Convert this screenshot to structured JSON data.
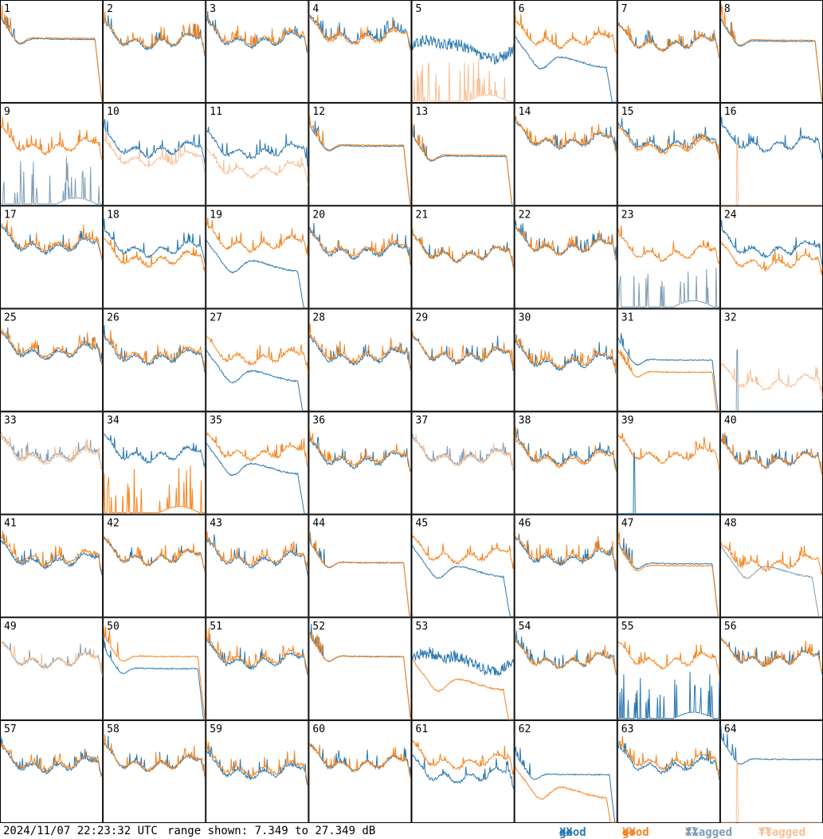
{
  "timestamp": "2024/11/07 22:23:32 UTC",
  "range_text": "range shown: 7.349 to 27.349 dB",
  "legend": [
    {
      "key": "good_xx",
      "prefix": "good",
      "pol": "XX",
      "color": "#2a78b0"
    },
    {
      "key": "good_yy",
      "prefix": "good",
      "pol": "YY",
      "color": "#f5841f"
    },
    {
      "key": "flagged_xx",
      "prefix": "flagged",
      "pol": "XX",
      "color": "#7f9db5"
    },
    {
      "key": "flagged_yy",
      "prefix": "flagged",
      "pol": "YY",
      "color": "#f7c096"
    }
  ],
  "chart_data": {
    "type": "line",
    "layout": "8x8 small multiples, one panel per tile",
    "ylim_db": [
      7.349,
      27.349
    ],
    "series_names": [
      "good XX",
      "good YY",
      "flagged XX",
      "flagged YY"
    ],
    "panels": [
      {
        "id": 1,
        "xx": "good",
        "yy": "good",
        "xx_shape": "flat",
        "yy_shape": "flat",
        "xx_level": 0.62,
        "yy_level": 0.63,
        "edge_drop": true
      },
      {
        "id": 2,
        "xx": "good",
        "yy": "good",
        "xx_shape": "typical",
        "yy_shape": "typical",
        "xx_level": 0.62,
        "yy_level": 0.63
      },
      {
        "id": 3,
        "xx": "good",
        "yy": "good",
        "xx_shape": "typical",
        "yy_shape": "typical",
        "xx_level": 0.63,
        "yy_level": 0.65
      },
      {
        "id": 4,
        "xx": "good",
        "yy": "good",
        "xx_shape": "typical",
        "yy_shape": "typical",
        "xx_level": 0.68,
        "yy_level": 0.66
      },
      {
        "id": 5,
        "xx": "good",
        "yy": "flagged",
        "xx_shape": "noisy",
        "yy_shape": "spiky_low",
        "xx_level": 0.55,
        "yy_level": 0.05
      },
      {
        "id": 6,
        "xx": "good",
        "yy": "good",
        "xx_shape": "dip",
        "yy_shape": "typical",
        "xx_level": 0.4,
        "yy_level": 0.63,
        "edge_drop": true
      },
      {
        "id": 7,
        "xx": "good",
        "yy": "good",
        "xx_shape": "typical",
        "yy_shape": "typical",
        "xx_level": 0.6,
        "yy_level": 0.6
      },
      {
        "id": 8,
        "xx": "good",
        "yy": "good",
        "xx_shape": "flat",
        "yy_shape": "flat",
        "xx_level": 0.6,
        "yy_level": 0.61,
        "edge_drop": true
      },
      {
        "id": 9,
        "xx": "flagged",
        "yy": "good",
        "xx_shape": "spiky_low",
        "yy_shape": "typical",
        "xx_level": 0.1,
        "yy_level": 0.6
      },
      {
        "id": 10,
        "xx": "good",
        "yy": "flagged",
        "xx_shape": "typical",
        "yy_shape": "typical",
        "xx_level": 0.57,
        "yy_level": 0.47,
        "edge_drop": true
      },
      {
        "id": 11,
        "xx": "good",
        "yy": "flagged",
        "xx_shape": "typical",
        "yy_shape": "typical",
        "xx_level": 0.55,
        "yy_level": 0.37,
        "edge_drop": true
      },
      {
        "id": 12,
        "xx": "good",
        "yy": "good",
        "xx_shape": "flat",
        "yy_shape": "flat",
        "xx_level": 0.58,
        "yy_level": 0.59,
        "edge_drop": true
      },
      {
        "id": 13,
        "xx": "good",
        "yy": "good",
        "xx_shape": "flat",
        "yy_shape": "flat",
        "xx_level": 0.48,
        "yy_level": 0.49,
        "edge_drop": true
      },
      {
        "id": 14,
        "xx": "good",
        "yy": "good",
        "xx_shape": "typical",
        "yy_shape": "typical",
        "xx_level": 0.65,
        "yy_level": 0.66
      },
      {
        "id": 15,
        "xx": "good",
        "yy": "good",
        "xx_shape": "typical",
        "yy_shape": "typical",
        "xx_level": 0.63,
        "yy_level": 0.6
      },
      {
        "id": 16,
        "xx": "good",
        "yy": "flagged",
        "xx_shape": "typical",
        "yy_shape": "spike_low",
        "xx_level": 0.62,
        "yy_level": 0.0
      },
      {
        "id": 17,
        "xx": "good",
        "yy": "good",
        "xx_shape": "typical",
        "yy_shape": "typical",
        "xx_level": 0.63,
        "yy_level": 0.65
      },
      {
        "id": 18,
        "xx": "good",
        "yy": "good",
        "xx_shape": "typical",
        "yy_shape": "typical",
        "xx_level": 0.6,
        "yy_level": 0.5
      },
      {
        "id": 19,
        "xx": "good",
        "yy": "good",
        "xx_shape": "dip",
        "yy_shape": "typical",
        "xx_level": 0.42,
        "yy_level": 0.65,
        "edge_drop": true
      },
      {
        "id": 20,
        "xx": "good",
        "yy": "good",
        "xx_shape": "typical",
        "yy_shape": "typical",
        "xx_level": 0.58,
        "yy_level": 0.6
      },
      {
        "id": 21,
        "xx": "good",
        "yy": "good",
        "xx_shape": "typical",
        "yy_shape": "typical",
        "xx_level": 0.55,
        "yy_level": 0.55
      },
      {
        "id": 22,
        "xx": "good",
        "yy": "good",
        "xx_shape": "typical",
        "yy_shape": "typical",
        "xx_level": 0.62,
        "yy_level": 0.62
      },
      {
        "id": 23,
        "xx": "flagged",
        "yy": "good",
        "xx_shape": "spiky_low",
        "yy_shape": "typical",
        "xx_level": 0.1,
        "yy_level": 0.56
      },
      {
        "id": 24,
        "xx": "good",
        "yy": "good",
        "xx_shape": "typical",
        "yy_shape": "typical",
        "xx_level": 0.6,
        "yy_level": 0.47
      },
      {
        "id": 25,
        "xx": "good",
        "yy": "good",
        "xx_shape": "typical",
        "yy_shape": "typical",
        "xx_level": 0.6,
        "yy_level": 0.62
      },
      {
        "id": 26,
        "xx": "good",
        "yy": "good",
        "xx_shape": "typical",
        "yy_shape": "typical",
        "xx_level": 0.55,
        "yy_level": 0.57
      },
      {
        "id": 27,
        "xx": "good",
        "yy": "good",
        "xx_shape": "dip",
        "yy_shape": "typical",
        "xx_level": 0.35,
        "yy_level": 0.55,
        "edge_drop": true
      },
      {
        "id": 28,
        "xx": "good",
        "yy": "good",
        "xx_shape": "typical",
        "yy_shape": "typical",
        "xx_level": 0.55,
        "yy_level": 0.57
      },
      {
        "id": 29,
        "xx": "good",
        "yy": "good",
        "xx_shape": "typical",
        "yy_shape": "typical",
        "xx_level": 0.56,
        "yy_level": 0.57
      },
      {
        "id": 30,
        "xx": "good",
        "yy": "good",
        "xx_shape": "typical",
        "yy_shape": "typical",
        "xx_level": 0.5,
        "yy_level": 0.52,
        "edge_drop": true
      },
      {
        "id": 31,
        "xx": "good",
        "yy": "good",
        "xx_shape": "flat",
        "yy_shape": "flat",
        "xx_level": 0.5,
        "yy_level": 0.38,
        "edge_drop": true
      },
      {
        "id": 32,
        "xx": "flagged",
        "yy": "flagged",
        "xx_shape": "spike_low",
        "yy_shape": "typical",
        "xx_level": 0.0,
        "yy_level": 0.3
      },
      {
        "id": 33,
        "xx": "flagged",
        "yy": "flagged",
        "xx_shape": "typical",
        "yy_shape": "typical",
        "xx_level": 0.6,
        "yy_level": 0.58
      },
      {
        "id": 34,
        "xx": "good",
        "yy": "good",
        "xx_shape": "typical",
        "yy_shape": "spiky_low",
        "xx_level": 0.6,
        "yy_level": 0.1
      },
      {
        "id": 35,
        "xx": "good",
        "yy": "good",
        "xx_shape": "dip",
        "yy_shape": "typical",
        "xx_level": 0.45,
        "yy_level": 0.62,
        "edge_drop": true
      },
      {
        "id": 36,
        "xx": "good",
        "yy": "good",
        "xx_shape": "typical",
        "yy_shape": "typical",
        "xx_level": 0.55,
        "yy_level": 0.57
      },
      {
        "id": 37,
        "xx": "flagged",
        "yy": "flagged",
        "xx_shape": "typical",
        "yy_shape": "typical",
        "xx_level": 0.58,
        "yy_level": 0.57
      },
      {
        "id": 38,
        "xx": "good",
        "yy": "good",
        "xx_shape": "typical",
        "yy_shape": "typical",
        "xx_level": 0.58,
        "yy_level": 0.56
      },
      {
        "id": 39,
        "xx": "good",
        "yy": "good",
        "xx_shape": "spike_low",
        "yy_shape": "typical",
        "xx_level": 0.0,
        "yy_level": 0.6
      },
      {
        "id": 40,
        "xx": "good",
        "yy": "good",
        "xx_shape": "typical",
        "yy_shape": "typical",
        "xx_level": 0.55,
        "yy_level": 0.55
      },
      {
        "id": 41,
        "xx": "good",
        "yy": "good",
        "xx_shape": "typical",
        "yy_shape": "typical",
        "xx_level": 0.57,
        "yy_level": 0.6
      },
      {
        "id": 42,
        "xx": "good",
        "yy": "good",
        "xx_shape": "typical",
        "yy_shape": "typical",
        "xx_level": 0.6,
        "yy_level": 0.6
      },
      {
        "id": 43,
        "xx": "good",
        "yy": "good",
        "xx_shape": "typical",
        "yy_shape": "typical",
        "xx_level": 0.58,
        "yy_level": 0.6
      },
      {
        "id": 44,
        "xx": "good",
        "yy": "good",
        "xx_shape": "flat",
        "yy_shape": "flat",
        "xx_level": 0.53,
        "yy_level": 0.53,
        "edge_drop": true
      },
      {
        "id": 45,
        "xx": "good",
        "yy": "good",
        "xx_shape": "dip",
        "yy_shape": "typical",
        "xx_level": 0.45,
        "yy_level": 0.62,
        "edge_drop": true
      },
      {
        "id": 46,
        "xx": "good",
        "yy": "good",
        "xx_shape": "typical",
        "yy_shape": "typical",
        "xx_level": 0.6,
        "yy_level": 0.62
      },
      {
        "id": 47,
        "xx": "good",
        "yy": "good",
        "xx_shape": "flat",
        "yy_shape": "flat",
        "xx_level": 0.52,
        "yy_level": 0.5,
        "edge_drop": true
      },
      {
        "id": 48,
        "xx": "flagged",
        "yy": "good",
        "xx_shape": "dip",
        "yy_shape": "typical",
        "xx_level": 0.45,
        "yy_level": 0.55,
        "edge_drop": true
      },
      {
        "id": 49,
        "xx": "flagged",
        "yy": "flagged",
        "xx_shape": "typical",
        "yy_shape": "typical",
        "xx_level": 0.6,
        "yy_level": 0.6
      },
      {
        "id": 50,
        "xx": "good",
        "yy": "good",
        "xx_shape": "flat",
        "yy_shape": "flat",
        "xx_level": 0.5,
        "yy_level": 0.62,
        "edge_drop": true
      },
      {
        "id": 51,
        "xx": "good",
        "yy": "good",
        "xx_shape": "typical",
        "yy_shape": "typical",
        "xx_level": 0.6,
        "yy_level": 0.62
      },
      {
        "id": 52,
        "xx": "good",
        "yy": "good",
        "xx_shape": "flat",
        "yy_shape": "flat",
        "xx_level": 0.62,
        "yy_level": 0.62,
        "edge_drop": true
      },
      {
        "id": 53,
        "xx": "good",
        "yy": "good",
        "xx_shape": "noisy",
        "yy_shape": "dip",
        "xx_level": 0.6,
        "yy_level": 0.35,
        "edge_drop": true
      },
      {
        "id": 54,
        "xx": "good",
        "yy": "good",
        "xx_shape": "typical",
        "yy_shape": "typical",
        "xx_level": 0.6,
        "yy_level": 0.6
      },
      {
        "id": 55,
        "xx": "good",
        "yy": "good",
        "xx_shape": "spiky_low",
        "yy_shape": "typical",
        "xx_level": 0.1,
        "yy_level": 0.6
      },
      {
        "id": 56,
        "xx": "good",
        "yy": "good",
        "xx_shape": "typical",
        "yy_shape": "typical",
        "xx_level": 0.62,
        "yy_level": 0.62
      },
      {
        "id": 57,
        "xx": "good",
        "yy": "good",
        "xx_shape": "typical",
        "yy_shape": "typical",
        "xx_level": 0.58,
        "yy_level": 0.6
      },
      {
        "id": 58,
        "xx": "good",
        "yy": "good",
        "xx_shape": "typical",
        "yy_shape": "typical",
        "xx_level": 0.6,
        "yy_level": 0.6
      },
      {
        "id": 59,
        "xx": "good",
        "yy": "good",
        "xx_shape": "typical",
        "yy_shape": "typical",
        "xx_level": 0.52,
        "yy_level": 0.55,
        "edge_drop": true
      },
      {
        "id": 60,
        "xx": "good",
        "yy": "good",
        "xx_shape": "typical",
        "yy_shape": "typical",
        "xx_level": 0.6,
        "yy_level": 0.6
      },
      {
        "id": 61,
        "xx": "good",
        "yy": "good",
        "xx_shape": "typical",
        "yy_shape": "typical",
        "xx_level": 0.48,
        "yy_level": 0.62,
        "edge_drop": true
      },
      {
        "id": 62,
        "xx": "good",
        "yy": "good",
        "xx_shape": "flat",
        "yy_shape": "dip",
        "xx_level": 0.47,
        "yy_level": 0.3,
        "edge_drop": true
      },
      {
        "id": 63,
        "xx": "good",
        "yy": "good",
        "xx_shape": "typical",
        "yy_shape": "typical",
        "xx_level": 0.58,
        "yy_level": 0.62
      },
      {
        "id": 64,
        "xx": "good",
        "yy": "flagged",
        "xx_shape": "flat",
        "yy_shape": "spike_low",
        "xx_level": 0.62,
        "yy_level": 0.0
      }
    ]
  }
}
